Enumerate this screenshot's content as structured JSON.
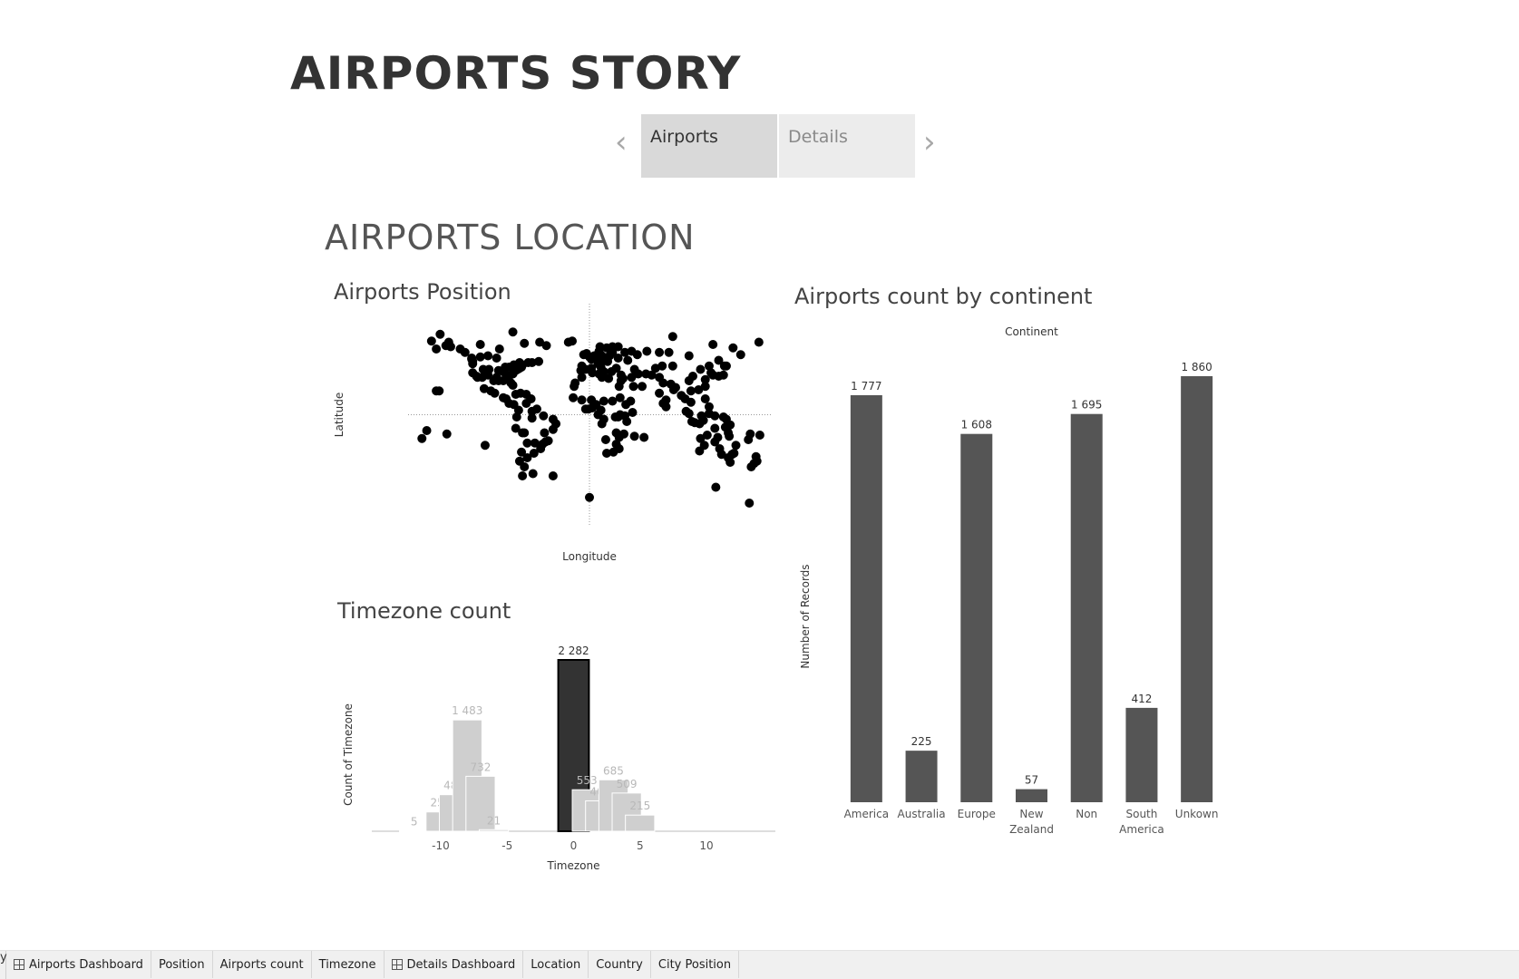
{
  "story": {
    "title": "AIRPORTS STORY",
    "points": [
      {
        "label": "Airports",
        "active": true
      },
      {
        "label": "Details",
        "active": false
      }
    ],
    "prev_icon": "chevron-left-icon",
    "next_icon": "chevron-right-icon"
  },
  "dashboard": {
    "title": "AIRPORTS LOCATION"
  },
  "scatter": {
    "title": "Airports Position",
    "xlabel": "Longitude",
    "ylabel": "Latitude",
    "color": "#000000"
  },
  "timezone_chart": {
    "title": "Timezone count",
    "xlabel": "Timezone",
    "ylabel": "Count of Timezone",
    "highlight_color": "#333333",
    "bar_color": "#cfcfcf",
    "label_color": "#b8b8b8"
  },
  "continent_chart": {
    "title": "Airports count by continent",
    "column_header": "Continent",
    "ylabel": "Number of Records",
    "bar_color": "#555555"
  },
  "chart_data": [
    {
      "type": "scatter",
      "title": "Airports Position",
      "xlabel": "Longitude",
      "ylabel": "Latitude",
      "xlim": [
        -180,
        180
      ],
      "ylim": [
        -90,
        90
      ],
      "reference_lines": {
        "x": 0,
        "y": 0
      },
      "grid": false,
      "points": [
        [
          -175,
          -21
        ],
        [
          -170,
          -14
        ],
        [
          -160,
          21
        ],
        [
          -157,
          21
        ],
        [
          -150,
          61
        ],
        [
          -147,
          64
        ],
        [
          -160,
          58
        ],
        [
          -165,
          65
        ],
        [
          -156,
          71
        ],
        [
          -145,
          60
        ],
        [
          -135,
          58
        ],
        [
          -130,
          55
        ],
        [
          -123,
          49
        ],
        [
          -122,
          47
        ],
        [
          -122,
          45
        ],
        [
          -122,
          37
        ],
        [
          -118,
          34
        ],
        [
          -117,
          33
        ],
        [
          -112,
          33
        ],
        [
          -111,
          40
        ],
        [
          -106,
          35
        ],
        [
          -105,
          40
        ],
        [
          -100,
          30
        ],
        [
          -97,
          33
        ],
        [
          -95,
          30
        ],
        [
          -95,
          39
        ],
        [
          -90,
          30
        ],
        [
          -90,
          38
        ],
        [
          -88,
          42
        ],
        [
          -87,
          35
        ],
        [
          -84,
          34
        ],
        [
          -84,
          42
        ],
        [
          -82,
          28
        ],
        [
          -80,
          26
        ],
        [
          -80,
          36
        ],
        [
          -77,
          39
        ],
        [
          -75,
          40
        ],
        [
          -73,
          41
        ],
        [
          -71,
          42
        ],
        [
          -70,
          44
        ],
        [
          -64,
          46
        ],
        [
          -60,
          46
        ],
        [
          -53,
          47
        ],
        [
          -79,
          44
        ],
        [
          -73,
          46
        ],
        [
          -97,
          50
        ],
        [
          -106,
          52
        ],
        [
          -114,
          51
        ],
        [
          -123,
          50
        ],
        [
          -114,
          62
        ],
        [
          -94,
          58
        ],
        [
          -68,
          63
        ],
        [
          -80,
          73
        ],
        [
          -52,
          64
        ],
        [
          -45,
          61
        ],
        [
          -18,
          65
        ],
        [
          -22,
          64
        ],
        [
          -99,
          19
        ],
        [
          -103,
          21
        ],
        [
          -110,
          23
        ],
        [
          -90,
          15
        ],
        [
          -87,
          14
        ],
        [
          -84,
          10
        ],
        [
          -79,
          9
        ],
        [
          -77,
          18
        ],
        [
          -72,
          19
        ],
        [
          -66,
          18
        ],
        [
          -61,
          14
        ],
        [
          -74,
          4
        ],
        [
          -76,
          -2
        ],
        [
          -77,
          -12
        ],
        [
          -70,
          -16
        ],
        [
          -68,
          -16
        ],
        [
          -66,
          10
        ],
        [
          -60,
          3
        ],
        [
          -55,
          5
        ],
        [
          -48,
          -1
        ],
        [
          -60,
          -3
        ],
        [
          -38,
          -4
        ],
        [
          -35,
          -8
        ],
        [
          -38,
          -13
        ],
        [
          -47,
          -16
        ],
        [
          -43,
          -23
        ],
        [
          -46,
          -24
        ],
        [
          -49,
          -26
        ],
        [
          -51,
          -30
        ],
        [
          -57,
          -25
        ],
        [
          -65,
          -25
        ],
        [
          -58,
          -34
        ],
        [
          -71,
          -33
        ],
        [
          -73,
          -41
        ],
        [
          -68,
          -46
        ],
        [
          -70,
          -54
        ],
        [
          -59,
          -52
        ],
        [
          -65,
          -38
        ],
        [
          -9,
          39
        ],
        [
          -4,
          40
        ],
        [
          2,
          41
        ],
        [
          -8,
          43
        ],
        [
          0,
          51
        ],
        [
          -3,
          54
        ],
        [
          -6,
          53
        ],
        [
          2,
          49
        ],
        [
          5,
          52
        ],
        [
          9,
          50
        ],
        [
          13,
          52
        ],
        [
          14,
          50
        ],
        [
          17,
          48
        ],
        [
          19,
          47
        ],
        [
          21,
          52
        ],
        [
          24,
          55
        ],
        [
          10,
          56
        ],
        [
          18,
          59
        ],
        [
          11,
          60
        ],
        [
          24,
          60
        ],
        [
          12,
          42
        ],
        [
          9,
          45
        ],
        [
          15,
          38
        ],
        [
          23,
          38
        ],
        [
          28,
          41
        ],
        [
          30,
          50
        ],
        [
          37,
          55
        ],
        [
          30,
          60
        ],
        [
          44,
          56
        ],
        [
          50,
          53
        ],
        [
          60,
          56
        ],
        [
          40,
          48
        ],
        [
          47,
          40
        ],
        [
          33,
          35
        ],
        [
          35,
          32
        ],
        [
          44,
          33
        ],
        [
          46,
          25
        ],
        [
          55,
          25
        ],
        [
          51,
          36
        ],
        [
          59,
          36
        ],
        [
          65,
          35
        ],
        [
          69,
          41
        ],
        [
          76,
          43
        ],
        [
          73,
          33
        ],
        [
          77,
          28
        ],
        [
          73,
          19
        ],
        [
          80,
          13
        ],
        [
          88,
          22
        ],
        [
          77,
          10
        ],
        [
          80,
          7
        ],
        [
          90,
          24
        ],
        [
          85,
          27
        ],
        [
          96,
          17
        ],
        [
          100,
          14
        ],
        [
          101,
          3
        ],
        [
          104,
          1
        ],
        [
          106,
          11
        ],
        [
          106,
          21
        ],
        [
          114,
          22
        ],
        [
          121,
          31
        ],
        [
          116,
          40
        ],
        [
          104,
          30
        ],
        [
          108,
          34
        ],
        [
          87,
          43
        ],
        [
          125,
          43
        ],
        [
          127,
          37
        ],
        [
          129,
          35
        ],
        [
          140,
          35
        ],
        [
          135,
          34
        ],
        [
          141,
          43
        ],
        [
          143,
          43
        ],
        [
          121,
          25
        ],
        [
          121,
          14
        ],
        [
          125,
          7
        ],
        [
          107,
          -6
        ],
        [
          110,
          -7
        ],
        [
          115,
          -8
        ],
        [
          117,
          -1
        ],
        [
          119,
          -5
        ],
        [
          125,
          1
        ],
        [
          131,
          -1
        ],
        [
          140,
          -2
        ],
        [
          147,
          -9
        ],
        [
          104,
          52
        ],
        [
          83,
          55
        ],
        [
          73,
          55
        ],
        [
          87,
          69
        ],
        [
          129,
          62
        ],
        [
          135,
          48
        ],
        [
          158,
          53
        ],
        [
          177,
          64
        ],
        [
          150,
          59
        ],
        [
          143,
          -4
        ],
        [
          -17,
          15
        ],
        [
          -8,
          13
        ],
        [
          -4,
          5
        ],
        [
          -1,
          5
        ],
        [
          3,
          6
        ],
        [
          7,
          9
        ],
        [
          15,
          12
        ],
        [
          12,
          4
        ],
        [
          9,
          0
        ],
        [
          15,
          -4
        ],
        [
          27,
          -2
        ],
        [
          30,
          -2
        ],
        [
          32,
          0
        ],
        [
          37,
          -1
        ],
        [
          39,
          -6
        ],
        [
          36,
          -17
        ],
        [
          28,
          -16
        ],
        [
          31,
          -20
        ],
        [
          28,
          -26
        ],
        [
          18,
          -34
        ],
        [
          25,
          -33
        ],
        [
          31,
          -30
        ],
        [
          17,
          -22
        ],
        [
          13,
          -8
        ],
        [
          47,
          -19
        ],
        [
          57,
          -20
        ],
        [
          38,
          9
        ],
        [
          45,
          2
        ],
        [
          43,
          12
        ],
        [
          32,
          15
        ],
        [
          33,
          30
        ],
        [
          31,
          25
        ],
        [
          13,
          33
        ],
        [
          3,
          37
        ],
        [
          -8,
          33
        ],
        [
          -15,
          28
        ],
        [
          -16,
          25
        ],
        [
          10,
          36
        ],
        [
          20,
          32
        ],
        [
          24,
          12
        ],
        [
          2,
          13
        ],
        [
          115,
          -32
        ],
        [
          116,
          -21
        ],
        [
          123,
          -18
        ],
        [
          131,
          -12
        ],
        [
          131,
          -24
        ],
        [
          136,
          -30
        ],
        [
          138,
          -35
        ],
        [
          145,
          -38
        ],
        [
          147,
          -42
        ],
        [
          151,
          -34
        ],
        [
          153,
          -27
        ],
        [
          149,
          -35
        ],
        [
          146,
          -19
        ],
        [
          145,
          -16
        ],
        [
          142,
          -11
        ],
        [
          134,
          -20
        ],
        [
          120,
          -27
        ],
        [
          174,
          -37
        ],
        [
          175,
          -41
        ],
        [
          172,
          -43
        ],
        [
          169,
          -46
        ],
        [
          178,
          -18
        ],
        [
          166,
          -22
        ],
        [
          168,
          -17
        ],
        [
          -149,
          -17
        ],
        [
          -109,
          -27
        ],
        [
          -38,
          -54
        ],
        [
          0,
          -73
        ],
        [
          132,
          -64
        ],
        [
          167,
          -78
        ]
      ]
    },
    {
      "type": "bar",
      "title": "Timezone count",
      "xlabel": "Timezone",
      "ylabel": "Count of Timezone",
      "x": [
        -12,
        -10,
        -9,
        -8,
        -7,
        -6,
        0,
        1,
        2,
        3,
        4,
        5,
        6
      ],
      "values": [
        5,
        257,
        487,
        1483,
        732,
        21,
        2282,
        553,
        405,
        685,
        509,
        215,
        0
      ],
      "labels": [
        "5",
        "257",
        "487",
        "1 483",
        "732",
        "21",
        "2 282",
        "553",
        "405",
        "685",
        "509",
        "215",
        ""
      ],
      "ticks": [
        -10,
        -5,
        0,
        5,
        10
      ],
      "highlight_index": 6,
      "ylim": [
        0,
        2282
      ]
    },
    {
      "type": "bar",
      "title": "Airports count by continent",
      "column_header": "Continent",
      "ylabel": "Number of Records",
      "categories": [
        "America",
        "Australia",
        "Europe",
        "New Zealand",
        "Non",
        "South America",
        "Unkown"
      ],
      "values": [
        1777,
        225,
        1608,
        57,
        1695,
        412,
        1860
      ],
      "labels": [
        "1 777",
        "225",
        "1 608",
        "57",
        "1 695",
        "412",
        "1 860"
      ],
      "ylim": [
        0,
        1860
      ]
    }
  ],
  "tabs": [
    {
      "label": "Airports Dashboard",
      "icon": "dashboard-grid-icon"
    },
    {
      "label": "Position",
      "icon": ""
    },
    {
      "label": "Airports count",
      "icon": ""
    },
    {
      "label": "Timezone",
      "icon": ""
    },
    {
      "label": "Details Dashboard",
      "icon": "dashboard-grid-icon"
    },
    {
      "label": "Location",
      "icon": ""
    },
    {
      "label": "Country",
      "icon": ""
    },
    {
      "label": "City Position",
      "icon": ""
    }
  ],
  "tab_edge_text": "y"
}
